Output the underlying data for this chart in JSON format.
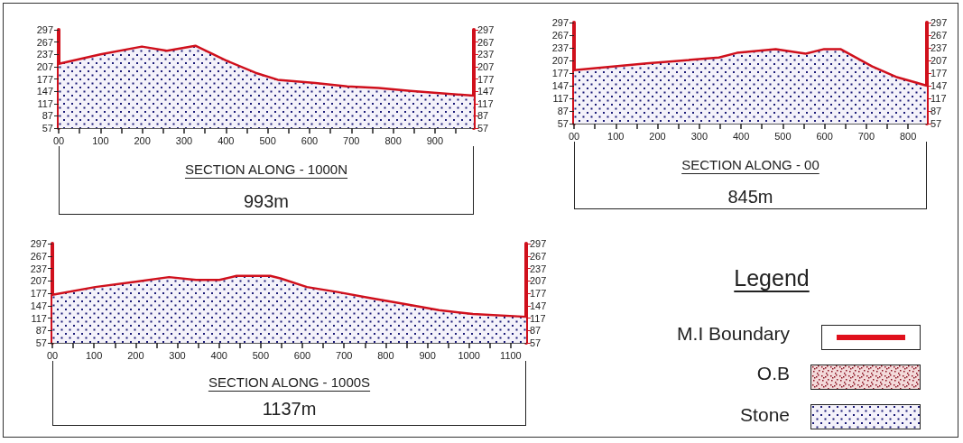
{
  "chart_data": [
    {
      "type": "area",
      "xlabel": "SECTION ALONG - 1000N",
      "annotations": [
        "993m"
      ],
      "grid": false,
      "series": [
        {
          "color": "#d0101c",
          "x": [
            0,
            100,
            199,
            259,
            327,
            403,
            471,
            524,
            614,
            690,
            765,
            841,
            993
          ],
          "values": [
            214,
            237,
            256,
            246,
            258,
            221,
            192,
            175,
            167,
            159,
            155,
            148,
            136
          ]
        }
      ],
      "xlim": [
        0,
        993
      ],
      "xticks": [
        {
          "value": 0,
          "label": "00"
        },
        {
          "value": 50,
          "label": null
        },
        100,
        {
          "value": 150,
          "label": null
        },
        200,
        {
          "value": 250,
          "label": null
        },
        300,
        {
          "value": 350,
          "label": null
        },
        400,
        {
          "value": 450,
          "label": null
        },
        500,
        {
          "value": 550,
          "label": null
        },
        600,
        {
          "value": 650,
          "label": null
        },
        700,
        {
          "value": 750,
          "label": null
        },
        800,
        {
          "value": 850,
          "label": null
        },
        900,
        {
          "value": 950,
          "label": null
        }
      ],
      "ylim": [
        57,
        297
      ],
      "yticks": [
        57,
        87,
        117,
        147,
        177,
        207,
        237,
        267,
        297
      ],
      "y2lim": [
        57,
        297
      ],
      "y2ticks": [
        57,
        87,
        117,
        147,
        177,
        207,
        237,
        267,
        297
      ]
    },
    {
      "type": "area",
      "xlabel": "SECTION ALONG - 00",
      "annotations": [
        "845m"
      ],
      "grid": false,
      "series": [
        {
          "color": "#d0101c",
          "x": [
            0,
            174,
            347,
            390,
            483,
            555,
            599,
            638,
            714,
            771,
            845
          ],
          "values": [
            184,
            200,
            214,
            225,
            234,
            223,
            234,
            234,
            193,
            168,
            147
          ]
        }
      ],
      "xlim": [
        0,
        845
      ],
      "xticks": [
        {
          "value": 0,
          "label": "00"
        },
        {
          "value": 50,
          "label": null
        },
        100,
        {
          "value": 150,
          "label": null
        },
        200,
        {
          "value": 250,
          "label": null
        },
        300,
        {
          "value": 350,
          "label": null
        },
        400,
        {
          "value": 450,
          "label": null
        },
        500,
        {
          "value": 550,
          "label": null
        },
        600,
        {
          "value": 650,
          "label": null
        },
        700,
        {
          "value": 750,
          "label": null
        },
        800
      ],
      "ylim": [
        57,
        297
      ],
      "yticks": [
        57,
        87,
        117,
        147,
        177,
        207,
        237,
        267,
        297
      ],
      "y2lim": [
        57,
        297
      ],
      "y2ticks": [
        57,
        87,
        117,
        147,
        177,
        207,
        237,
        267,
        297
      ]
    },
    {
      "type": "area",
      "xlabel": "SECTION ALONG - 1000S",
      "annotations": [
        "1137m"
      ],
      "grid": false,
      "series": [
        {
          "color": "#d0101c",
          "x": [
            0,
            103,
            200,
            280,
            345,
            401,
            442,
            523,
            547,
            611,
            684,
            765,
            846,
            928,
            1009,
            1137
          ],
          "values": [
            173,
            192,
            205,
            216,
            209,
            209,
            219,
            219,
            213,
            192,
            180,
            165,
            151,
            136,
            127,
            120
          ]
        }
      ],
      "xlim": [
        0,
        1137
      ],
      "xticks": [
        {
          "value": 0,
          "label": "00"
        },
        {
          "value": 50,
          "label": null
        },
        100,
        {
          "value": 150,
          "label": null
        },
        200,
        {
          "value": 250,
          "label": null
        },
        300,
        {
          "value": 350,
          "label": null
        },
        400,
        {
          "value": 450,
          "label": null
        },
        500,
        {
          "value": 550,
          "label": null
        },
        600,
        {
          "value": 650,
          "label": null
        },
        700,
        {
          "value": 750,
          "label": null
        },
        800,
        {
          "value": 850,
          "label": null
        },
        900,
        {
          "value": 950,
          "label": null
        },
        1000,
        {
          "value": 1050,
          "label": null
        },
        1100
      ],
      "ylim": [
        57,
        297
      ],
      "yticks": [
        57,
        87,
        117,
        147,
        177,
        207,
        237,
        267,
        297
      ],
      "y2lim": [
        57,
        297
      ],
      "y2ticks": [
        57,
        87,
        117,
        147,
        177,
        207,
        237,
        267,
        297
      ]
    },
    {
      "type": "other",
      "title": "Legend",
      "annotations": [
        "M.I Boundary",
        "O.B",
        "Stone"
      ]
    }
  ]
}
